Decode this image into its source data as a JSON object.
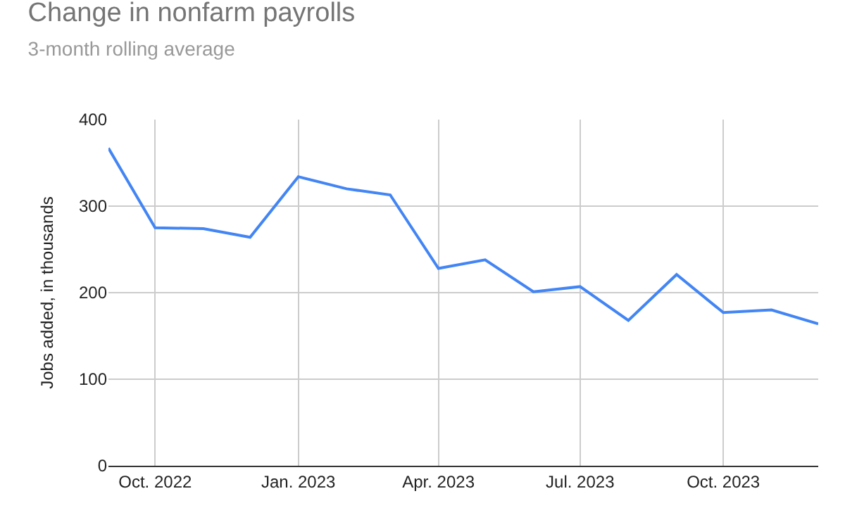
{
  "chart_data": {
    "type": "line",
    "title": "Change in nonfarm payrolls",
    "subtitle": "3-month rolling average",
    "ylabel": "Jobs added, in thousands",
    "x": [
      "2022-09",
      "2022-10",
      "2022-11",
      "2022-12",
      "2023-01",
      "2023-02",
      "2023-03",
      "2023-04",
      "2023-05",
      "2023-06",
      "2023-07",
      "2023-08",
      "2023-09",
      "2023-10",
      "2023-11",
      "2023-12"
    ],
    "series": [
      {
        "color": "#4285f4",
        "values": [
          367,
          275,
          274,
          264,
          334,
          320,
          313,
          228,
          238,
          201,
          207,
          168,
          221,
          177,
          180,
          164
        ]
      }
    ],
    "xlim": [
      "2022-09",
      "2023-12"
    ],
    "xticks": [
      {
        "value": "2022-10",
        "label": "Oct. 2022"
      },
      {
        "value": "2023-01",
        "label": "Jan. 2023"
      },
      {
        "value": "2023-04",
        "label": "Apr. 2023"
      },
      {
        "value": "2023-07",
        "label": "Jul. 2023"
      },
      {
        "value": "2023-10",
        "label": "Oct. 2023"
      }
    ],
    "ylim": [
      0,
      400
    ],
    "yticks": [
      0,
      100,
      200,
      300,
      400
    ],
    "grid": true,
    "marker": "none",
    "line_style": "solid",
    "legend": false
  }
}
